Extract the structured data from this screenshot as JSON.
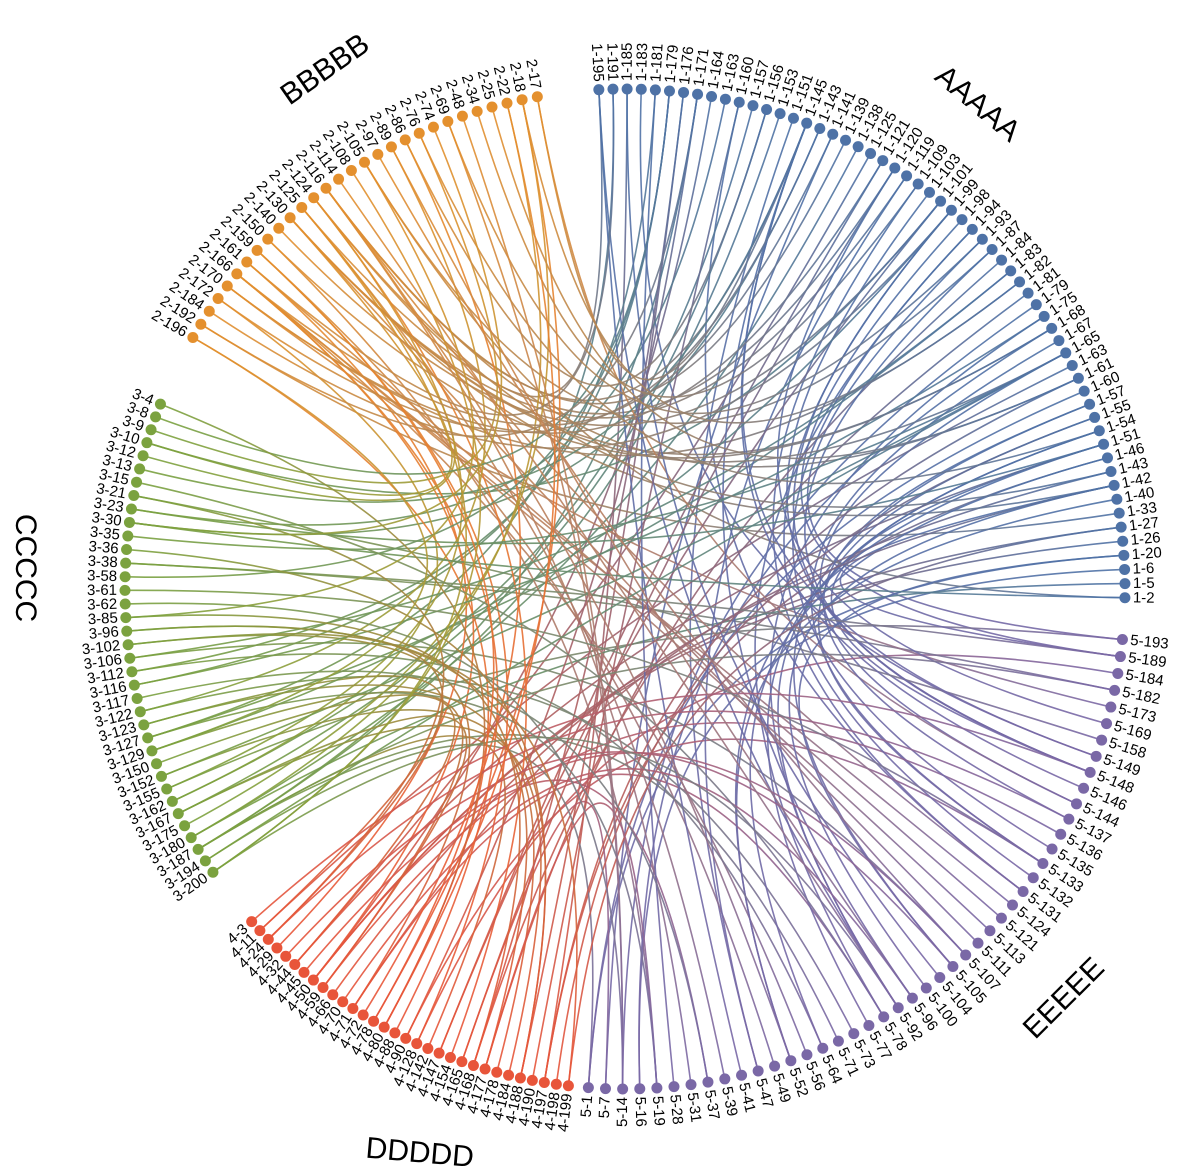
{
  "chart_data": {
    "type": "chord-diagram",
    "title": "",
    "groups": [
      {
        "name": "AAAAA",
        "color": "#4e72a6",
        "nodes": [
          "1-195",
          "1-191",
          "1-185",
          "1-183",
          "1-181",
          "1-179",
          "1-176",
          "1-171",
          "1-164",
          "1-163",
          "1-160",
          "1-157",
          "1-156",
          "1-153",
          "1-151",
          "1-145",
          "1-143",
          "1-141",
          "1-139",
          "1-138",
          "1-125",
          "1-121",
          "1-120",
          "1-119",
          "1-109",
          "1-103",
          "1-101",
          "1-99",
          "1-98",
          "1-94",
          "1-93",
          "1-87",
          "1-84",
          "1-83",
          "1-82",
          "1-81",
          "1-79",
          "1-75",
          "1-68",
          "1-67",
          "1-65",
          "1-63",
          "1-61",
          "1-60",
          "1-57",
          "1-55",
          "1-54",
          "1-51",
          "1-46",
          "1-43",
          "1-42",
          "1-40",
          "1-33",
          "1-27",
          "1-26",
          "1-20",
          "1-6",
          "1-5",
          "1-2"
        ]
      },
      {
        "name": "EEEEE",
        "color": "#7a68a6",
        "nodes": [
          "5-193",
          "5-189",
          "5-184",
          "5-182",
          "5-173",
          "5-169",
          "5-158",
          "5-149",
          "5-148",
          "5-146",
          "5-144",
          "5-137",
          "5-136",
          "5-135",
          "5-133",
          "5-132",
          "5-131",
          "5-124",
          "5-121",
          "5-113",
          "5-111",
          "5-107",
          "5-105",
          "5-104",
          "5-100",
          "5-96",
          "5-92",
          "5-78",
          "5-77",
          "5-73",
          "5-71",
          "5-64",
          "5-56",
          "5-52",
          "5-49",
          "5-47",
          "5-41",
          "5-39",
          "5-37",
          "5-31",
          "5-28",
          "5-19",
          "5-16",
          "5-14",
          "5-7",
          "5-1"
        ]
      },
      {
        "name": "DDDDD",
        "color": "#e8553a",
        "nodes": [
          "4-199",
          "4-198",
          "4-197",
          "4-190",
          "4-188",
          "4-184",
          "4-178",
          "4-177",
          "4-168",
          "4-165",
          "4-154",
          "4-147",
          "4-142",
          "4-128",
          "4-90",
          "4-88",
          "4-80",
          "4-78",
          "4-72",
          "4-71",
          "4-70",
          "4-66",
          "4-59",
          "4-50",
          "4-45",
          "4-44",
          "4-32",
          "4-29",
          "4-24",
          "4-11",
          "4-3"
        ]
      },
      {
        "name": "CCCCC",
        "color": "#7ba23f",
        "nodes": [
          "3-200",
          "3-194",
          "3-187",
          "3-180",
          "3-175",
          "3-167",
          "3-162",
          "3-155",
          "3-152",
          "3-150",
          "3-129",
          "3-127",
          "3-123",
          "3-122",
          "3-117",
          "3-116",
          "3-112",
          "3-106",
          "3-102",
          "3-96",
          "3-85",
          "3-62",
          "3-61",
          "3-58",
          "3-38",
          "3-36",
          "3-35",
          "3-30",
          "3-23",
          "3-21",
          "3-15",
          "3-13",
          "3-12",
          "3-10",
          "3-9",
          "3-8",
          "3-4"
        ]
      },
      {
        "name": "BBBBB",
        "color": "#e4902e",
        "nodes": [
          "2-196",
          "2-192",
          "2-184",
          "2-172",
          "2-170",
          "2-166",
          "2-161",
          "2-159",
          "2-150",
          "2-140",
          "2-130",
          "2-125",
          "2-124",
          "2-116",
          "2-114",
          "2-108",
          "2-105",
          "2-97",
          "2-89",
          "2-86",
          "2-76",
          "2-74",
          "2-69",
          "2-48",
          "2-34",
          "2-25",
          "2-22",
          "2-18",
          "2-17"
        ]
      }
    ],
    "links_per_node": 1
  }
}
